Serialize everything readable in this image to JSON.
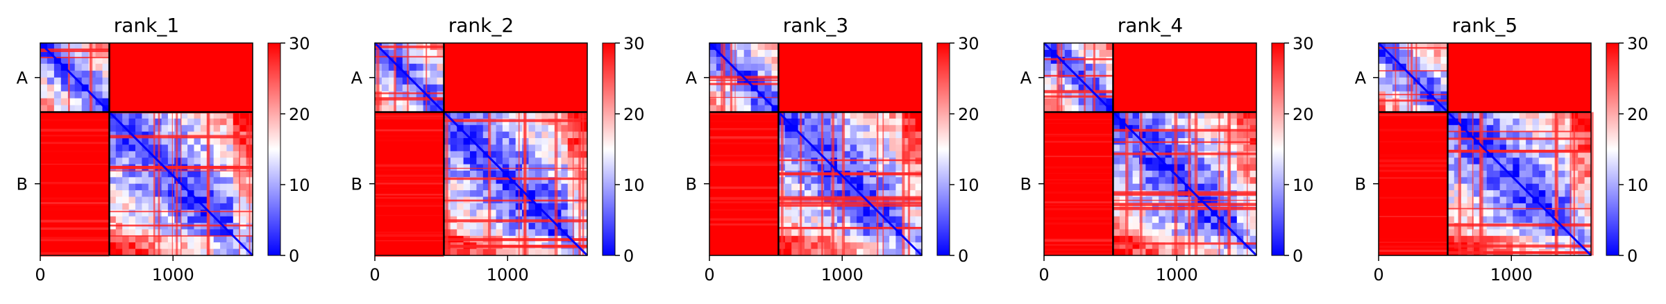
{
  "chart_data": {
    "type": "heatmap",
    "colormap": {
      "low": "#0000ff",
      "mid": "#ffffff",
      "high": "#ff0000"
    },
    "value_range": [
      0,
      30
    ],
    "colorbar_ticks": [
      "0",
      "10",
      "20",
      "30"
    ],
    "x_ticks": [
      {
        "value": 0,
        "label": "0"
      },
      {
        "value": 1000,
        "label": "1000"
      }
    ],
    "x_range": [
      0,
      1600
    ],
    "chain_labels": [
      "A",
      "B"
    ],
    "chain_boundary": 520,
    "panels": [
      {
        "title": "rank_1"
      },
      {
        "title": "rank_2"
      },
      {
        "title": "rank_3"
      },
      {
        "title": "rank_4"
      },
      {
        "title": "rank_5"
      }
    ]
  }
}
